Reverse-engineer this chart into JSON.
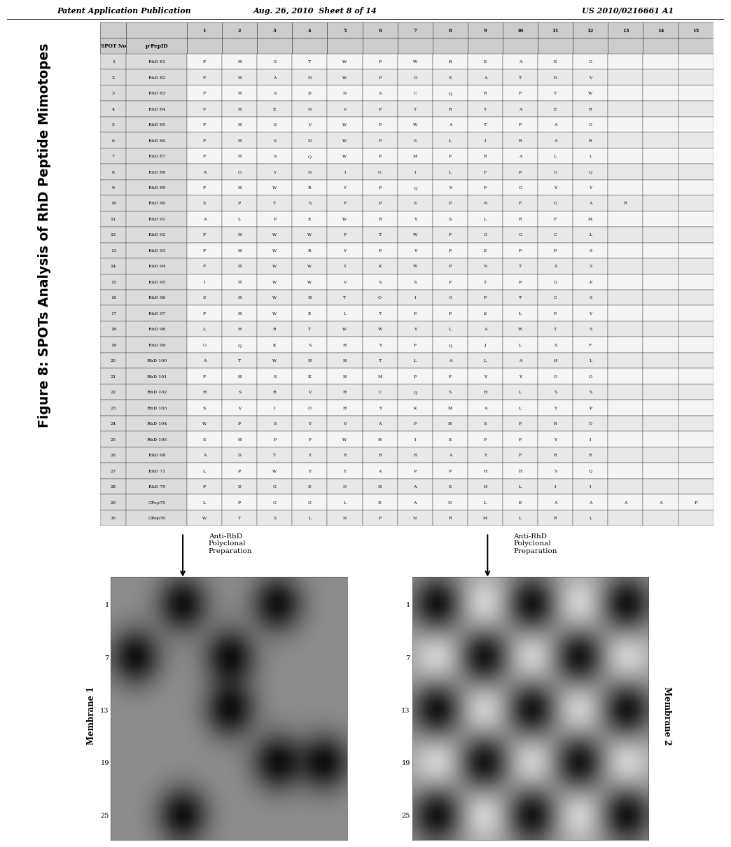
{
  "header_left": "Patent Application Publication",
  "header_mid": "Aug. 26, 2010  Sheet 8 of 14",
  "header_right": "US 2010/0216661 A1",
  "figure_title": "Figure 8: SPOTs Analysis of RhD Peptide Mimotopes",
  "table_data": [
    [
      1,
      "RhD 81",
      "F",
      "H",
      "S",
      "T",
      "W",
      "P",
      "W",
      "R",
      "E",
      "A",
      "E",
      "G",
      "",
      "",
      ""
    ],
    [
      2,
      "RhD 82",
      "F",
      "H",
      "A",
      "N",
      "W",
      "P",
      "O",
      "S",
      "A",
      "T",
      "D",
      "V",
      "",
      "",
      ""
    ],
    [
      3,
      "RhD 83",
      "F",
      "H",
      "S",
      "D",
      "N",
      "S",
      "C",
      "Q",
      "R",
      "F",
      "T",
      "W",
      "",
      "",
      ""
    ],
    [
      4,
      "RhD 84",
      "F",
      "H",
      "E",
      "N",
      "V",
      "P",
      "T",
      "R",
      "T",
      "A",
      "E",
      "R",
      "",
      "",
      ""
    ],
    [
      5,
      "RhD 85",
      "F",
      "H",
      "S",
      "V",
      "W",
      "P",
      "W",
      "A",
      "T",
      "F",
      "A",
      "G",
      "",
      "",
      ""
    ],
    [
      6,
      "RhD 86",
      "F",
      "H",
      "S",
      "N",
      "W",
      "P",
      "S",
      "L",
      "I",
      "R",
      "A",
      "R",
      "",
      "",
      ""
    ],
    [
      7,
      "RhD 87",
      "F",
      "H",
      "S",
      "Q",
      "W",
      "P",
      "M",
      "P",
      "R",
      "A",
      "L",
      "L",
      "",
      "",
      ""
    ],
    [
      8,
      "RhD 88",
      "A",
      "O",
      "Y",
      "N",
      "I",
      "G",
      "I",
      "L",
      "F",
      "P",
      "O",
      "Q",
      "",
      "",
      ""
    ],
    [
      9,
      "RhD 89",
      "F",
      "H",
      "W",
      "R",
      "Y",
      "P",
      "Q",
      "V",
      "P",
      "G",
      "Y",
      "Y",
      "",
      "",
      ""
    ],
    [
      10,
      "RhD 90",
      "S",
      "P",
      "T",
      "S",
      "F",
      "P",
      "S",
      "P",
      "N",
      "F",
      "G",
      "A",
      "R",
      "",
      ""
    ],
    [
      11,
      "RhD 91",
      "A",
      "L",
      "P",
      "E",
      "W",
      "R",
      "Y",
      "S",
      "L",
      "R",
      "F",
      "M",
      "",
      "",
      ""
    ],
    [
      12,
      "RhD 92",
      "F",
      "H",
      "W",
      "W",
      "P",
      "T",
      "W",
      "P",
      "G",
      "G",
      "C",
      "L",
      "",
      "",
      ""
    ],
    [
      13,
      "RhD 93",
      "F",
      "H",
      "W",
      "R",
      "Y",
      "P",
      "Y",
      "P",
      "E",
      "P",
      "P",
      "S",
      "",
      "",
      ""
    ],
    [
      14,
      "RhD 94",
      "F",
      "H",
      "W",
      "W",
      "Y",
      "K",
      "W",
      "P",
      "N",
      "T",
      "S",
      "S",
      "",
      "",
      ""
    ],
    [
      15,
      "RhD 95",
      "I",
      "H",
      "W",
      "W",
      "V",
      "S",
      "S",
      "P",
      "T",
      "P",
      "G",
      "P",
      "",
      "",
      ""
    ],
    [
      16,
      "RhD 96",
      "S",
      "H",
      "W",
      "H",
      "T",
      "O",
      "I",
      "O",
      "P",
      "T",
      "C",
      "S",
      "",
      "",
      ""
    ],
    [
      17,
      "RhD 97",
      "F",
      "H",
      "W",
      "E",
      "L",
      "T",
      "P",
      "P",
      "K",
      "L",
      "P",
      "Y",
      "",
      "",
      ""
    ],
    [
      18,
      "RhD 98",
      "L",
      "H",
      "R",
      "T",
      "W",
      "W",
      "Y",
      "L",
      "A",
      "W",
      "T",
      "S",
      "",
      "",
      ""
    ],
    [
      19,
      "RhD 99",
      "O",
      "Q",
      "K",
      "S",
      "H",
      "Y",
      "F",
      "Q",
      "J",
      "L",
      "S",
      "F",
      "",
      "",
      ""
    ],
    [
      20,
      "RhD 100",
      "A",
      "T",
      "W",
      "H",
      "H",
      "T",
      "L",
      "A",
      "L",
      "A",
      "H",
      "L",
      "",
      "",
      ""
    ],
    [
      21,
      "RhD 101",
      "F",
      "H",
      "S",
      "K",
      "H",
      "M",
      "P",
      "F",
      "Y",
      "Y",
      "O",
      "O",
      "",
      "",
      ""
    ],
    [
      22,
      "RhD 102",
      "H",
      "S",
      "R",
      "V",
      "H",
      "C",
      "Q",
      "S",
      "H",
      "L",
      "S",
      "S",
      "",
      "",
      ""
    ],
    [
      23,
      "RhD 103",
      "S",
      "V",
      "I",
      "O",
      "H",
      "Y",
      "K",
      "M",
      "A",
      "L",
      "Y",
      "P",
      "",
      "",
      ""
    ],
    [
      24,
      "RhD 104",
      "W",
      "P",
      "S",
      "Y",
      "V",
      "A",
      "P",
      "H",
      "S",
      "P",
      "R",
      "O",
      "",
      "",
      ""
    ],
    [
      25,
      "RhD 105",
      "S",
      "H",
      "P",
      "F",
      "W",
      "H",
      "I",
      "E",
      "P",
      "F",
      "Y",
      "I",
      "",
      "",
      ""
    ],
    [
      26,
      "RhD 68",
      "A",
      "D",
      "T",
      "Y",
      "R",
      "R",
      "R",
      "A",
      "Y",
      "F",
      "R",
      "R",
      "",
      "",
      ""
    ],
    [
      27,
      "RhD 71",
      "L",
      "P",
      "W",
      "Y",
      "Y",
      "A",
      "P",
      "P",
      "H",
      "H",
      "S",
      "Q",
      "",
      "",
      ""
    ],
    [
      28,
      "RhD 79",
      "P",
      "D",
      "G",
      "D",
      "N",
      "H",
      "A",
      "E",
      "H",
      "L",
      "I",
      "I",
      "",
      "",
      ""
    ],
    [
      29,
      "CPep75",
      "L",
      "P",
      "G",
      "G",
      "L",
      "D",
      "A",
      "N",
      "L",
      "E",
      "A",
      "A",
      "A",
      "A",
      "P"
    ],
    [
      30,
      "CPep76",
      "W",
      "T",
      "S",
      "L",
      "N",
      "F",
      "N",
      "R",
      "M",
      "L",
      "R",
      "L",
      "",
      "",
      ""
    ]
  ],
  "membrane1_label": "Membrane 1",
  "membrane2_label": "Membrane 2",
  "arrow_label": "Anti-RhD\nPolyclonal\nPreparation",
  "mem_row_labels": [
    "1",
    "7",
    "13",
    "19",
    "25"
  ],
  "bg_color": "#ffffff"
}
